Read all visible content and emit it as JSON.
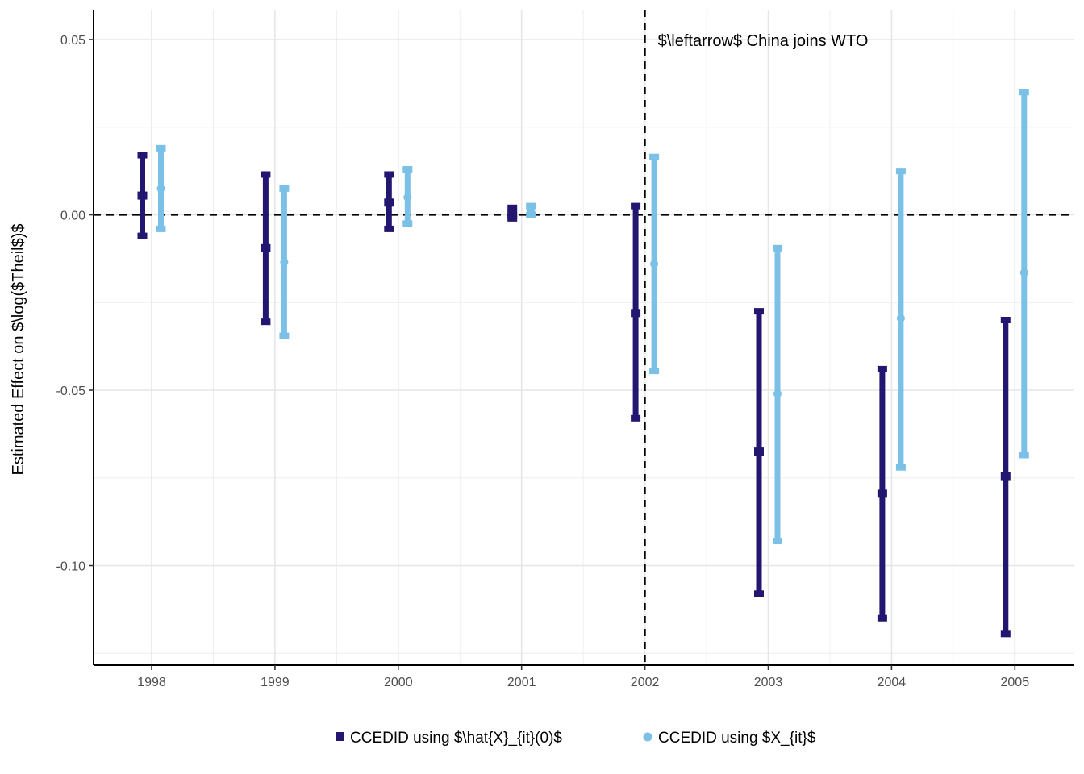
{
  "chart_data": {
    "type": "errorbar",
    "title": "",
    "xlabel": "",
    "ylabel": "Estimated Effect on $\\log($Theil$)$",
    "categories": [
      "1998",
      "1999",
      "2000",
      "2001",
      "2002",
      "2003",
      "2004",
      "2005"
    ],
    "ylim": [
      -0.128,
      0.058
    ],
    "yticks": [
      0.05,
      0.0,
      -0.05,
      -0.1
    ],
    "ytick_labels": [
      "0.05",
      "0.00",
      "-0.05",
      "-0.10"
    ],
    "reference_lines": {
      "horizontal_y": 0.0,
      "vertical_x": "2002"
    },
    "annotation": "$\\leftarrow$ China joins WTO",
    "grid": true,
    "legend_position": "bottom",
    "series": [
      {
        "name": "CCEDID using $\\hat{X}_{it}(0)$",
        "color": "#231670",
        "marker": "square",
        "estimate": [
          0.0055,
          -0.0095,
          0.0035,
          0.0,
          -0.028,
          -0.0675,
          -0.0795,
          -0.0745
        ],
        "lower": [
          -0.006,
          -0.0305,
          -0.004,
          -0.001,
          -0.058,
          -0.108,
          -0.115,
          -0.1195
        ],
        "upper": [
          0.017,
          0.0115,
          0.0115,
          0.002,
          0.0025,
          -0.0275,
          -0.044,
          -0.03
        ]
      },
      {
        "name": "CCEDID using $X_{it}$",
        "color": "#7bc0e6",
        "marker": "circle",
        "estimate": [
          0.0075,
          -0.0135,
          0.005,
          0.001,
          -0.014,
          -0.051,
          -0.0295,
          -0.0165
        ],
        "lower": [
          -0.004,
          -0.0345,
          -0.0025,
          0.0,
          -0.0445,
          -0.093,
          -0.072,
          -0.0685
        ],
        "upper": [
          0.019,
          0.0075,
          0.013,
          0.0025,
          0.0165,
          -0.0095,
          0.0125,
          0.035
        ]
      }
    ]
  }
}
